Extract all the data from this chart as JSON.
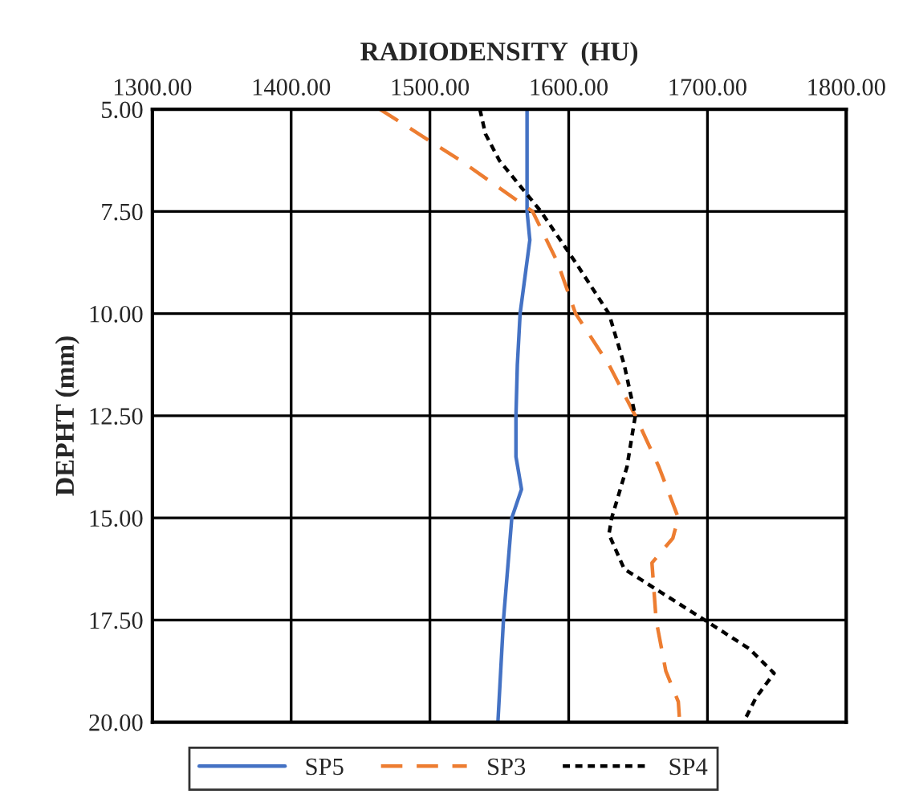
{
  "chart_data": {
    "type": "line",
    "orientation": "horizontal",
    "xlabel": "RADIODENSITY  (HU)",
    "ylabel": "DEPHT (mm)",
    "xlim": [
      1300,
      1800
    ],
    "xticks": [
      {
        "value": 1300,
        "label": "1300.00"
      },
      {
        "value": 1400,
        "label": "1400.00"
      },
      {
        "value": 1500,
        "label": "1500.00"
      },
      {
        "value": 1600,
        "label": "1600.00"
      },
      {
        "value": 1700,
        "label": "1700.00"
      },
      {
        "value": 1800,
        "label": "1800.00"
      }
    ],
    "ylim": [
      20,
      5
    ],
    "yticks": [
      {
        "value": 5,
        "label": "5.00"
      },
      {
        "value": 7.5,
        "label": "7.50"
      },
      {
        "value": 10,
        "label": "10.00"
      },
      {
        "value": 12.5,
        "label": "12.50"
      },
      {
        "value": 15,
        "label": "15.00"
      },
      {
        "value": 17.5,
        "label": "17.50"
      },
      {
        "value": 20,
        "label": "20.00"
      }
    ],
    "grid": true,
    "legend": "bottom",
    "series": [
      {
        "name": "SP5",
        "color": "#4472c4",
        "line_style": "solid",
        "x": [
          5,
          6.25,
          7.5,
          8.2,
          10,
          11.25,
          12.5,
          13.5,
          14.3,
          15,
          16.25,
          17.5,
          18.75,
          20
        ],
        "values": [
          1570,
          1570,
          1570,
          1572,
          1565,
          1563,
          1562,
          1562,
          1566,
          1559,
          1556,
          1553,
          1551,
          1549
        ]
      },
      {
        "name": "SP3",
        "color": "#ed7d31",
        "line_style": "dashed",
        "x": [
          5,
          6.25,
          7.5,
          8.75,
          10,
          11.25,
          12.5,
          13.75,
          15,
          15.5,
          16.1,
          17.5,
          18.75,
          19.5,
          20
        ],
        "values": [
          1464,
          1522,
          1574,
          1592,
          1605,
          1629,
          1648,
          1665,
          1679,
          1675,
          1660,
          1663,
          1670,
          1679,
          1680
        ]
      },
      {
        "name": "SP4",
        "color": "#000000",
        "line_style": "dotted",
        "x": [
          5,
          5.6,
          6.25,
          7.5,
          8.75,
          10,
          11.25,
          12.5,
          13.75,
          15,
          15.4,
          16.25,
          17.5,
          18.2,
          18.8,
          19.4,
          20
        ],
        "values": [
          1536,
          1540,
          1550,
          1580,
          1605,
          1629,
          1640,
          1648,
          1642,
          1631,
          1629,
          1640,
          1698,
          1730,
          1748,
          1735,
          1726
        ]
      }
    ]
  }
}
